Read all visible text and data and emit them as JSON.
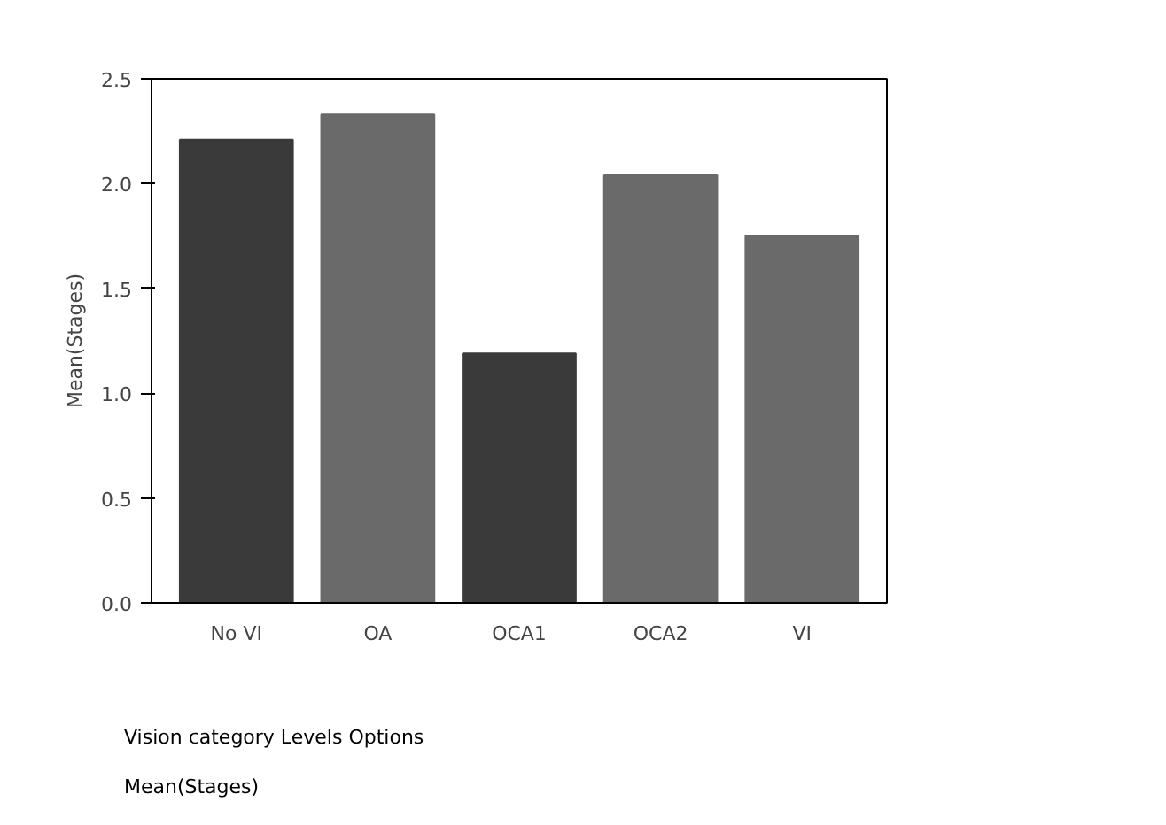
{
  "chart_data": {
    "type": "bar",
    "ylabel": "Mean(Stages)",
    "categories": [
      "No VI",
      "OA",
      "OCA1",
      "OCA2",
      "VI"
    ],
    "values": [
      2.21,
      2.33,
      1.19,
      2.04,
      1.75
    ],
    "colors": [
      "#3a3a3a",
      "#6a6a6a",
      "#3a3a3a",
      "#6a6a6a",
      "#6a6a6a"
    ],
    "ylim": [
      0,
      2.5
    ],
    "yticks": [
      {
        "value": 0,
        "label": "0.0"
      },
      {
        "value": 0.5,
        "label": "0.5"
      },
      {
        "value": 1,
        "label": "1.0"
      },
      {
        "value": 1.5,
        "label": "1.5"
      },
      {
        "value": 2,
        "label": "2.0"
      },
      {
        "value": 2.5,
        "label": "2.5"
      }
    ],
    "grid": false,
    "annotations": [
      "Vision category Levels Options",
      "Mean(Stages)"
    ]
  }
}
